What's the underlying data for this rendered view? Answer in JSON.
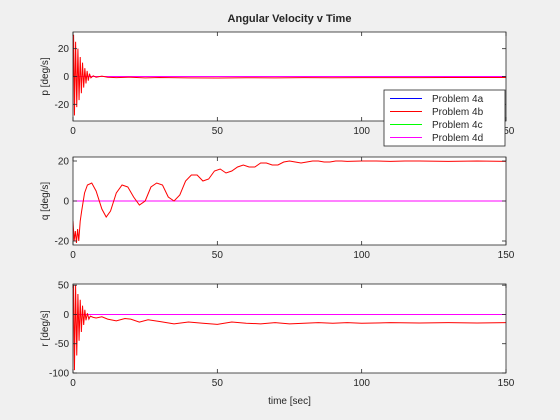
{
  "figure": {
    "background": "#f0f0f0"
  },
  "chart_data": {
    "type": "line",
    "title": "Angular Velocity v Time",
    "xlabel": "time [sec]",
    "xlim": [
      0,
      150
    ],
    "xticks": [
      0,
      50,
      100,
      150
    ],
    "legend": {
      "location": "right of top panel",
      "entries": [
        {
          "name": "Problem 4a",
          "color": "#0000ff"
        },
        {
          "name": "Problem 4b",
          "color": "#ff0000"
        },
        {
          "name": "Problem 4c",
          "color": "#00ff00"
        },
        {
          "name": "Problem 4d",
          "color": "#ff00ff"
        }
      ]
    },
    "subplots": [
      {
        "ylabel": "p [deg/s]",
        "ylim": [
          -32,
          32
        ],
        "yticks": [
          -20,
          0,
          20
        ],
        "grid": false,
        "series": [
          {
            "name": "Problem 4a",
            "color": "#0000ff",
            "x": [
              0,
              150
            ],
            "y": [
              0,
              0
            ]
          },
          {
            "name": "Problem 4c",
            "color": "#00ff00",
            "x": [
              0,
              150
            ],
            "y": [
              0,
              0
            ]
          },
          {
            "name": "Problem 4d",
            "color": "#ff00ff",
            "x": [
              0,
              150
            ],
            "y": [
              0,
              0
            ]
          },
          {
            "name": "Problem 4b",
            "color": "#ff0000",
            "x": [
              0,
              0.2,
              0.5,
              0.9,
              1.3,
              1.7,
              2.1,
              2.5,
              2.9,
              3.3,
              3.7,
              4.1,
              4.5,
              4.9,
              5.3,
              5.7,
              6.2,
              7,
              8,
              10,
              12,
              15,
              20,
              25,
              30,
              40,
              50,
              60,
              70,
              80,
              90,
              100,
              110,
              120,
              130,
              140,
              150
            ],
            "y": [
              0,
              30,
              -28,
              25,
              -22,
              20,
              -17,
              14,
              -12,
              10,
              -8,
              6,
              -5,
              4,
              -3,
              2,
              -1,
              0.5,
              -0.5,
              0.3,
              -0.5,
              -0.8,
              -0.5,
              -1,
              -0.7,
              -1,
              -1.1,
              -0.9,
              -1,
              -0.8,
              -0.9,
              -0.8,
              -0.8,
              -0.8,
              -0.7,
              -0.7,
              -0.7
            ]
          }
        ]
      },
      {
        "ylabel": "q [deg/s]",
        "ylim": [
          -22,
          22
        ],
        "yticks": [
          -20,
          0,
          20
        ],
        "grid": false,
        "series": [
          {
            "name": "Problem 4a",
            "color": "#0000ff",
            "x": [
              0,
              150
            ],
            "y": [
              0,
              0
            ]
          },
          {
            "name": "Problem 4c",
            "color": "#00ff00",
            "x": [
              0,
              150
            ],
            "y": [
              0,
              0
            ]
          },
          {
            "name": "Problem 4d",
            "color": "#ff00ff",
            "x": [
              0,
              150
            ],
            "y": [
              0,
              0
            ]
          },
          {
            "name": "Problem 4b",
            "color": "#ff0000",
            "x": [
              0,
              0.4,
              0.8,
              1.2,
              1.6,
              2,
              2.5,
              3,
              4,
              5,
              6.5,
              8,
              10,
              11.5,
              13,
              15,
              17,
              19,
              21,
              23,
              25,
              27,
              29,
              31,
              33,
              35,
              37,
              39,
              41,
              43,
              45,
              47,
              49,
              51,
              53,
              55,
              57,
              59,
              61,
              63,
              65,
              67,
              69,
              71,
              73,
              75,
              77,
              79,
              81,
              83,
              85,
              87,
              89,
              91,
              93,
              95,
              100,
              105,
              110,
              115,
              120,
              130,
              140,
              150
            ],
            "y": [
              -10,
              -20,
              -15,
              -21,
              -14,
              -20,
              -10,
              -5,
              4,
              8,
              9,
              5,
              -4,
              -8,
              -5,
              4,
              8,
              7,
              2,
              -2,
              0,
              7,
              9,
              8,
              2,
              0,
              3,
              10,
              13,
              13,
              10,
              11,
              15,
              16,
              14,
              15,
              17,
              18,
              17,
              17,
              19,
              19,
              18,
              18,
              19.5,
              20,
              19.5,
              19,
              19.5,
              20,
              20,
              19.5,
              19.5,
              20,
              20,
              19.8,
              20,
              20,
              19.8,
              20,
              20,
              19.8,
              20,
              19.8
            ]
          }
        ]
      },
      {
        "ylabel": "r [deg/s]",
        "ylim": [
          -100,
          52
        ],
        "yticks": [
          -100,
          -50,
          0,
          50
        ],
        "grid": false,
        "series": [
          {
            "name": "Problem 4a",
            "color": "#0000ff",
            "x": [
              0,
              150
            ],
            "y": [
              0,
              0
            ]
          },
          {
            "name": "Problem 4c",
            "color": "#00ff00",
            "x": [
              0,
              150
            ],
            "y": [
              0,
              0
            ]
          },
          {
            "name": "Problem 4d",
            "color": "#ff00ff",
            "x": [
              0,
              150
            ],
            "y": [
              0,
              0
            ]
          },
          {
            "name": "Problem 4b",
            "color": "#ff0000",
            "x": [
              0,
              0.2,
              0.5,
              0.9,
              1.3,
              1.7,
              2.1,
              2.5,
              2.9,
              3.3,
              3.7,
              4.1,
              4.5,
              5,
              5.5,
              6,
              7,
              8,
              10,
              12,
              15,
              18,
              20,
              23,
              26,
              30,
              35,
              40,
              45,
              50,
              55,
              60,
              65,
              70,
              75,
              80,
              85,
              90,
              95,
              100,
              110,
              120,
              130,
              140,
              150
            ],
            "y": [
              0,
              50,
              -95,
              50,
              -70,
              35,
              -45,
              25,
              -30,
              15,
              -18,
              8,
              -10,
              2,
              -8,
              -3,
              -5,
              -6,
              -4,
              -8,
              -11,
              -7,
              -8,
              -13,
              -9,
              -12,
              -16,
              -13,
              -15,
              -17,
              -13,
              -15,
              -16,
              -14,
              -16,
              -15,
              -14,
              -15,
              -14,
              -15,
              -14,
              -14.5,
              -14,
              -14.5,
              -14
            ]
          }
        ]
      }
    ]
  }
}
